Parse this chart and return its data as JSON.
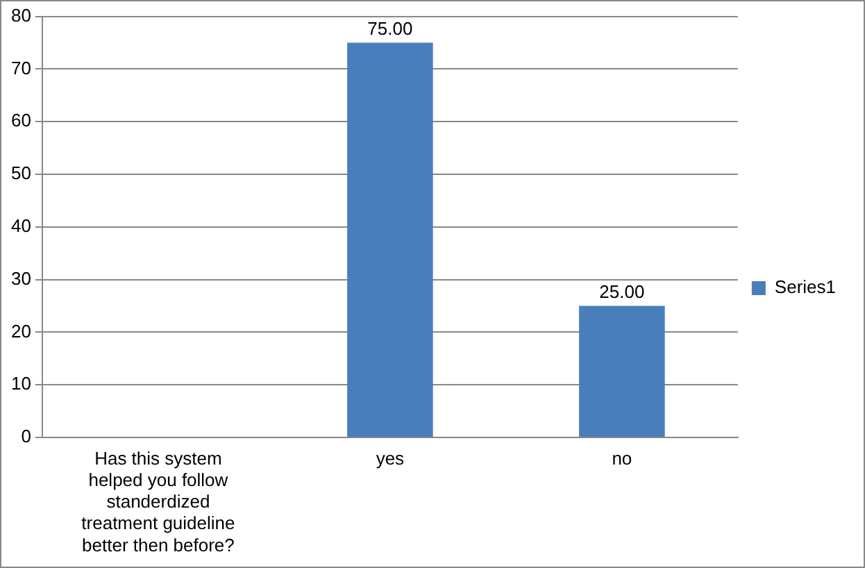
{
  "chart_data": {
    "type": "bar",
    "categories": [
      "Has this system helped you follow standerdized treatment guideline better then before?",
      "yes",
      "no"
    ],
    "series": [
      {
        "name": "Series1",
        "color": "#4a7ebb",
        "values": [
          null,
          75,
          25
        ],
        "value_labels": [
          null,
          "75.00",
          "25.00"
        ]
      }
    ],
    "ylim": [
      0,
      80
    ],
    "yticks": [
      0,
      10,
      20,
      30,
      40,
      50,
      60,
      70,
      80
    ],
    "grid": "y",
    "legend": "right"
  }
}
